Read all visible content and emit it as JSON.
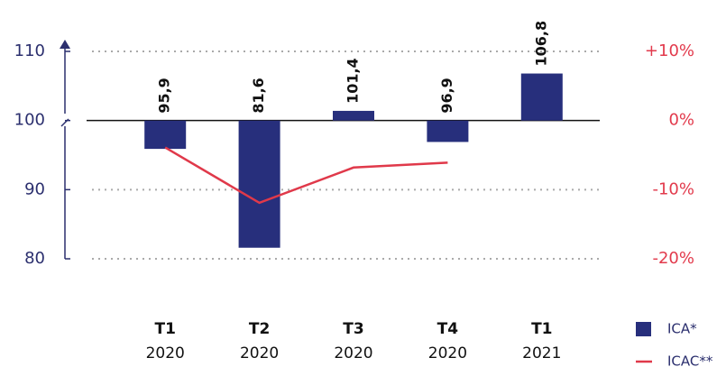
{
  "chart_data": {
    "type": "bar",
    "categories": [
      [
        "T1",
        "2020"
      ],
      [
        "T2",
        "2020"
      ],
      [
        "T3",
        "2020"
      ],
      [
        "T4",
        "2020"
      ],
      [
        "T1",
        "2021"
      ]
    ],
    "series": [
      {
        "name": "ICA*",
        "type": "bar",
        "color": "#272f7c",
        "values": [
          95.9,
          81.6,
          101.4,
          96.9,
          106.8
        ],
        "value_labels": [
          "95,9",
          "81,6",
          "101,4",
          "96,9",
          "106,8"
        ]
      },
      {
        "name": "ICAC**",
        "type": "line",
        "axis": "y2",
        "color": "#e0394a",
        "values": [
          -3.9,
          -11.9,
          -6.8,
          -6.1,
          null
        ]
      }
    ],
    "ylim": [
      80,
      110
    ],
    "yticks": [
      80,
      90,
      100,
      110
    ],
    "y2lim": [
      -20,
      10
    ],
    "y2ticks": [
      {
        "value": -20,
        "label": "-20%"
      },
      {
        "value": -10,
        "label": "-10%"
      },
      {
        "value": 0,
        "label": "0%"
      },
      {
        "value": 10,
        "label": "+10%"
      }
    ],
    "baseline": 100,
    "grid": true
  }
}
